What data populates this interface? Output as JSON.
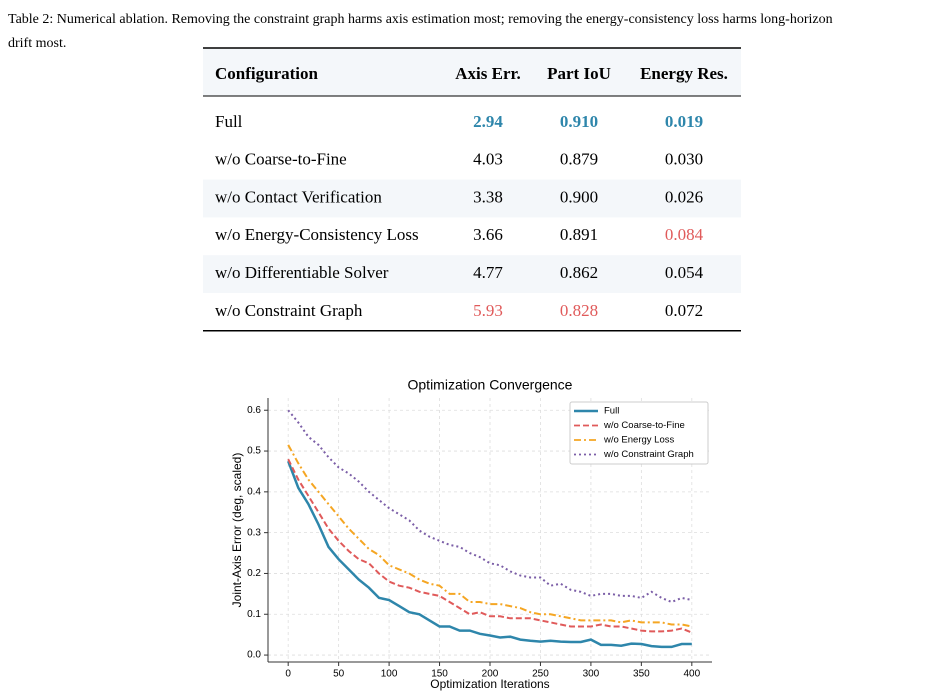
{
  "caption": "Table 2: Numerical ablation. Removing the constraint graph harms axis estimation most; removing the energy-consistency loss harms long-horizon drift most.",
  "table": {
    "header": [
      "Configuration",
      "Axis Err.",
      "Part IoU",
      "Energy Res."
    ],
    "rows": [
      [
        "Full",
        {
          "text": "2.94",
          "color": "#2e86ab"
        },
        {
          "text": "0.910",
          "color": "#2e86ab"
        },
        {
          "text": "0.019",
          "color": "#2e86ab"
        }
      ],
      [
        "w/o Coarse-to-Fine",
        "4.03",
        "0.879",
        "0.030"
      ],
      [
        "w/o Contact Verification",
        "3.38",
        "0.900",
        "0.026"
      ],
      [
        "w/o Energy-Consistency Loss",
        "3.66",
        "0.891",
        {
          "text": "0.084",
          "color": "#e05a5a"
        }
      ],
      [
        "w/o Differentiable Solver",
        "4.77",
        "0.862",
        "0.054"
      ],
      [
        "w/o Constraint Graph",
        {
          "text": "5.93",
          "color": "#e05a5a"
        },
        {
          "text": "0.828",
          "color": "#e05a5a"
        },
        "0.072"
      ]
    ]
  },
  "chart_data": {
    "type": "line",
    "title": "Optimization Convergence",
    "x_label": "Optimization Iterations",
    "y_label": "Joint-Axis Error (deg, scaled)",
    "x": [
      0,
      10,
      20,
      30,
      40,
      50,
      60,
      70,
      80,
      90,
      100,
      110,
      120,
      130,
      140,
      150,
      160,
      170,
      180,
      190,
      200,
      210,
      220,
      230,
      240,
      250,
      260,
      270,
      280,
      290,
      300,
      310,
      320,
      330,
      340,
      350,
      360,
      370,
      380,
      390,
      400
    ],
    "series": [
      {
        "name": "Full",
        "color": "#2e86ab",
        "style": "solid",
        "values": [
          0.475,
          0.41,
          0.37,
          0.32,
          0.265,
          0.235,
          0.21,
          0.185,
          0.165,
          0.14,
          0.135,
          0.12,
          0.105,
          0.1,
          0.085,
          0.07,
          0.07,
          0.06,
          0.06,
          0.052,
          0.048,
          0.043,
          0.045,
          0.038,
          0.035,
          0.033,
          0.035,
          0.033,
          0.032,
          0.032,
          0.038,
          0.025,
          0.025,
          0.023,
          0.028,
          0.027,
          0.022,
          0.02,
          0.02,
          0.027,
          0.027
        ]
      },
      {
        "name": "w/o Coarse-to-Fine",
        "color": "#e05a5a",
        "style": "dashed",
        "values": [
          0.48,
          0.43,
          0.39,
          0.35,
          0.31,
          0.28,
          0.255,
          0.235,
          0.225,
          0.2,
          0.18,
          0.17,
          0.165,
          0.155,
          0.15,
          0.145,
          0.13,
          0.115,
          0.1,
          0.105,
          0.095,
          0.095,
          0.09,
          0.09,
          0.09,
          0.085,
          0.08,
          0.075,
          0.07,
          0.07,
          0.07,
          0.075,
          0.07,
          0.07,
          0.065,
          0.06,
          0.058,
          0.058,
          0.06,
          0.065,
          0.055
        ]
      },
      {
        "name": "w/o Energy Loss",
        "color": "#f5a623",
        "style": "dashdot",
        "values": [
          0.515,
          0.47,
          0.43,
          0.4,
          0.37,
          0.34,
          0.31,
          0.285,
          0.26,
          0.245,
          0.22,
          0.21,
          0.2,
          0.185,
          0.175,
          0.17,
          0.15,
          0.15,
          0.13,
          0.13,
          0.125,
          0.125,
          0.12,
          0.115,
          0.105,
          0.1,
          0.1,
          0.095,
          0.09,
          0.085,
          0.085,
          0.085,
          0.085,
          0.08,
          0.085,
          0.08,
          0.08,
          0.08,
          0.075,
          0.075,
          0.07
        ]
      },
      {
        "name": "w/o Constraint Graph",
        "color": "#7b5ea7",
        "style": "dotted",
        "values": [
          0.6,
          0.57,
          0.535,
          0.515,
          0.485,
          0.46,
          0.445,
          0.425,
          0.4,
          0.38,
          0.36,
          0.345,
          0.33,
          0.305,
          0.29,
          0.28,
          0.27,
          0.265,
          0.25,
          0.24,
          0.225,
          0.22,
          0.205,
          0.195,
          0.19,
          0.19,
          0.17,
          0.175,
          0.16,
          0.155,
          0.145,
          0.15,
          0.15,
          0.145,
          0.145,
          0.14,
          0.155,
          0.14,
          0.13,
          0.14,
          0.135
        ]
      }
    ],
    "xlim": [
      -20,
      420
    ],
    "ylim": [
      -0.017,
      0.63
    ],
    "xticks": [
      0,
      50,
      100,
      150,
      200,
      250,
      300,
      350,
      400
    ],
    "yticks": [
      {
        "value": 0,
        "label": "0.0"
      },
      0.1,
      0.2,
      0.3,
      0.4,
      0.5,
      0.6
    ],
    "grid": true,
    "legend": "upper right"
  }
}
